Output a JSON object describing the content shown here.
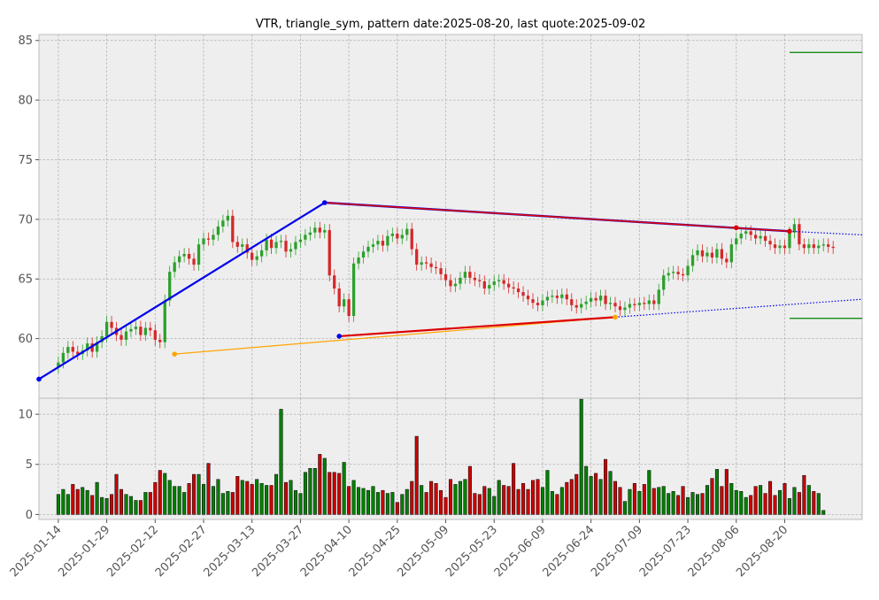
{
  "chart_data": {
    "type": "candlestick",
    "title": "VTR, triangle_sym, pattern date:2025-08-20, last quote:2025-09-02",
    "price_axis": {
      "ylim": [
        55.0,
        85.5
      ],
      "ticks": [
        60,
        65,
        70,
        75,
        80,
        85
      ]
    },
    "volume_axis": {
      "ylim": [
        -0.5,
        11.6
      ],
      "ticks": [
        0,
        5,
        10
      ]
    },
    "x_ticks": [
      "2025-01-14",
      "2025-01-29",
      "2025-02-12",
      "2025-02-27",
      "2025-03-13",
      "2025-03-27",
      "2025-04-10",
      "2025-04-25",
      "2025-05-09",
      "2025-05-23",
      "2025-06-09",
      "2025-06-24",
      "2025-07-09",
      "2025-07-23",
      "2025-08-06",
      "2025-08-20"
    ],
    "x_tick_index": [
      0,
      10,
      20,
      30,
      40,
      50,
      60,
      70,
      80,
      90,
      100,
      110,
      120,
      130,
      140,
      150
    ],
    "x_range": [
      -4,
      166
    ],
    "closes": [
      58.0,
      58.8,
      59.3,
      58.9,
      58.7,
      59.0,
      59.6,
      58.9,
      59.7,
      60.2,
      61.4,
      60.9,
      60.3,
      59.9,
      60.6,
      60.8,
      61.0,
      60.3,
      60.9,
      60.7,
      59.9,
      59.7,
      63.2,
      65.6,
      66.4,
      66.9,
      67.1,
      66.7,
      66.2,
      67.9,
      68.4,
      68.3,
      68.7,
      69.4,
      69.9,
      70.3,
      68.1,
      67.7,
      67.9,
      67.2,
      66.6,
      66.9,
      67.4,
      68.3,
      67.6,
      68.1,
      68.2,
      67.3,
      67.5,
      68.1,
      68.3,
      68.7,
      68.9,
      69.3,
      68.9,
      69.1,
      65.3,
      64.2,
      62.7,
      63.3,
      61.9,
      66.3,
      66.8,
      67.3,
      67.7,
      67.9,
      68.2,
      67.8,
      68.6,
      68.8,
      68.4,
      68.7,
      69.2,
      67.5,
      66.2,
      66.4,
      66.3,
      66.0,
      65.9,
      65.4,
      64.9,
      64.4,
      64.6,
      65.1,
      65.6,
      65.1,
      64.9,
      64.8,
      64.2,
      64.5,
      64.8,
      64.9,
      64.6,
      64.3,
      64.2,
      63.9,
      63.6,
      63.3,
      63.0,
      62.8,
      63.2,
      63.5,
      63.6,
      63.4,
      63.7,
      63.3,
      62.8,
      62.6,
      62.9,
      63.1,
      63.4,
      63.2,
      63.6,
      62.9,
      63.0,
      62.7,
      62.4,
      62.6,
      62.9,
      62.8,
      63.0,
      62.9,
      63.2,
      62.9,
      64.1,
      65.3,
      65.5,
      65.6,
      65.4,
      65.3,
      66.1,
      67.0,
      67.4,
      66.9,
      67.2,
      66.8,
      67.5,
      66.7,
      66.4,
      67.9,
      68.4,
      68.8,
      69.0,
      68.7,
      68.4,
      68.6,
      68.2,
      67.9,
      67.6,
      67.8,
      67.6,
      68.9,
      69.6,
      67.9,
      67.6,
      67.9,
      67.6,
      67.8,
      67.9,
      67.7,
      67.6
    ],
    "volumes": [
      2.0,
      2.5,
      2.0,
      3.0,
      2.5,
      2.7,
      2.4,
      1.9,
      3.2,
      1.7,
      1.6,
      2.0,
      4.0,
      2.5,
      2.0,
      1.8,
      1.4,
      1.4,
      2.2,
      2.2,
      3.2,
      4.4,
      4.1,
      3.4,
      2.8,
      2.8,
      2.2,
      3.1,
      4.0,
      4.0,
      3.0,
      5.1,
      2.8,
      3.5,
      2.1,
      2.3,
      2.2,
      3.8,
      3.4,
      3.3,
      3.0,
      3.5,
      3.1,
      2.9,
      2.9,
      4.0,
      10.5,
      3.2,
      3.4,
      2.4,
      2.1,
      4.2,
      4.6,
      4.6,
      6.0,
      5.6,
      4.2,
      4.2,
      4.1,
      5.2,
      2.8,
      3.4,
      2.7,
      2.6,
      2.4,
      2.8,
      2.2,
      2.4,
      2.1,
      2.2,
      1.2,
      2.0,
      2.5,
      3.3,
      7.8,
      2.9,
      2.2,
      3.3,
      3.1,
      2.4,
      1.7,
      3.5,
      3.0,
      3.3,
      3.5,
      4.8,
      2.1,
      2.0,
      2.8,
      2.6,
      1.8,
      3.4,
      2.9,
      2.8,
      5.1,
      2.5,
      3.1,
      2.5,
      3.4,
      3.5,
      2.7,
      4.4,
      2.3,
      2.0,
      2.7,
      3.2,
      3.5,
      4.0,
      11.5,
      4.8,
      3.8,
      4.1,
      3.5,
      5.5,
      4.3,
      3.3,
      2.7,
      1.3,
      2.5,
      3.1,
      2.3,
      3.0,
      4.4,
      2.6,
      2.7,
      2.8,
      2.1,
      2.3,
      1.9,
      2.8,
      1.7,
      2.2,
      2.0,
      2.1,
      2.9,
      3.6,
      4.5,
      2.8,
      4.5,
      3.1,
      2.4,
      2.3,
      1.7,
      1.9,
      2.8,
      2.9,
      2.1,
      3.3,
      1.9,
      2.4,
      3.1,
      1.6,
      2.7,
      2.2,
      3.9,
      2.9,
      2.3,
      2.1,
      0.4
    ],
    "support_line": {
      "x": [
        24,
        115
      ],
      "y": [
        58.7,
        61.8
      ]
    },
    "red_upper_line": {
      "x": [
        55,
        151
      ],
      "y": [
        71.4,
        69.0
      ]
    },
    "red_lower_line": {
      "x": [
        58,
        115
      ],
      "y": [
        60.2,
        61.8
      ]
    },
    "blue_rise_line": {
      "x": [
        -4,
        55
      ],
      "y": [
        56.6,
        71.4
      ]
    },
    "blue_projection_upper": {
      "x": [
        151,
        166
      ],
      "y": [
        69.0,
        68.7
      ]
    },
    "blue_projection_lower": {
      "x": [
        115,
        166
      ],
      "y": [
        61.8,
        63.3
      ]
    },
    "target_lines": [
      {
        "y": 84.0,
        "x": [
          151,
          166
        ]
      },
      {
        "y": 61.7,
        "x": [
          151,
          166
        ]
      }
    ],
    "colors": {
      "up": "#2ca02c",
      "down": "#d62728",
      "vol_up": "#008000",
      "vol_down": "#cc0000",
      "blue": "#0000ee",
      "red": "#dd0000",
      "orange": "#ffa500",
      "green": "#008000"
    }
  }
}
